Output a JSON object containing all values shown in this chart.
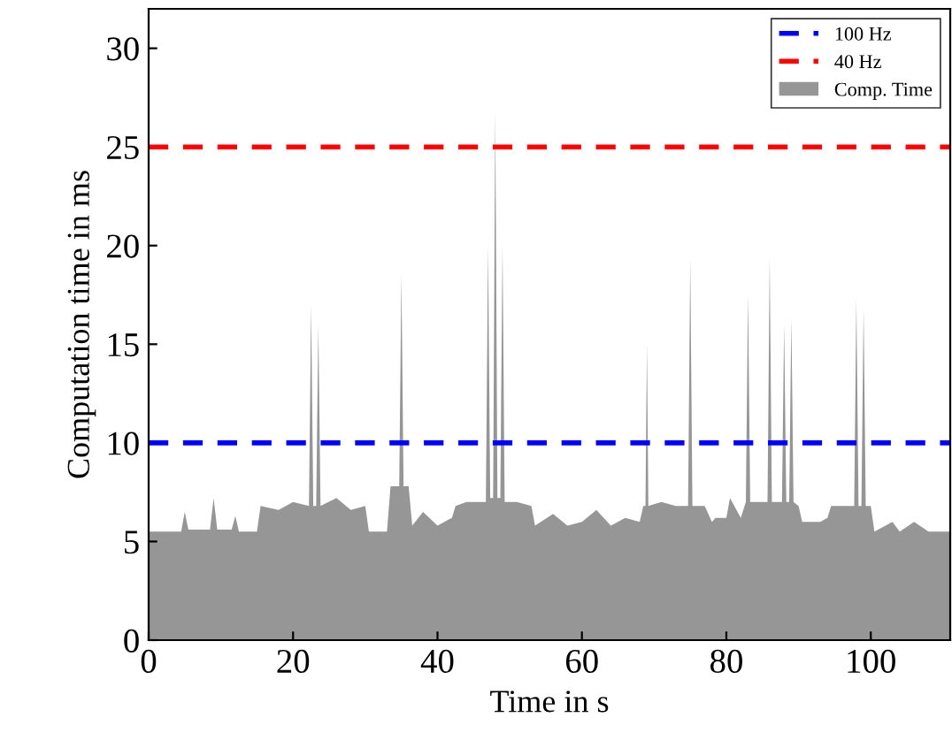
{
  "chart_data": {
    "type": "area",
    "xlabel": "Time in s",
    "ylabel": "Computation time in ms",
    "xlim": [
      0,
      111
    ],
    "ylim": [
      0,
      32
    ],
    "xticks": [
      0,
      20,
      40,
      60,
      80,
      100
    ],
    "yticks": [
      0,
      5,
      10,
      15,
      20,
      25,
      30
    ],
    "grid": false,
    "legend": "top right",
    "series": [
      {
        "name": "Comp. Time",
        "color": "#969696",
        "x": [
          0,
          4.5,
          5,
          5.5,
          8.5,
          9,
          9.5,
          11.5,
          12,
          12.5,
          15,
          15.5,
          18,
          20,
          22.2,
          22.5,
          22.8,
          23.2,
          23.5,
          23.8,
          26,
          28,
          30,
          30.5,
          33,
          33.5,
          34.7,
          35,
          35.3,
          36,
          36.5,
          38,
          40,
          42,
          42.5,
          44,
          46.7,
          47,
          47.3,
          47.7,
          48,
          48.3,
          48.7,
          49,
          49.3,
          51,
          53,
          53.5,
          56,
          58,
          60,
          62,
          64,
          66,
          68,
          68.5,
          68.8,
          69,
          69.2,
          71,
          73,
          74.7,
          75,
          75.3,
          77,
          78,
          78.5,
          80,
          80.5,
          82,
          82.7,
          83,
          83.3,
          85.7,
          86,
          86.3,
          87.7,
          88,
          88.3,
          88.7,
          89,
          89.3,
          90,
          90.5,
          93,
          94,
          94.5,
          97,
          97.7,
          98,
          98.3,
          98.7,
          99,
          99.3,
          100,
          100.5,
          103,
          104,
          106,
          108,
          111
        ],
        "values": [
          5.5,
          5.5,
          6.5,
          5.6,
          5.6,
          7.2,
          5.6,
          5.6,
          6.3,
          5.5,
          5.5,
          6.8,
          6.6,
          7.0,
          6.8,
          17,
          6.8,
          6.8,
          16,
          6.8,
          7.2,
          6.6,
          6.8,
          5.5,
          5.5,
          7.8,
          7.8,
          18.5,
          7.8,
          7.8,
          5.8,
          6.5,
          5.8,
          6.2,
          6.8,
          7.0,
          7.0,
          20,
          7.2,
          7.2,
          26.8,
          7.2,
          7.2,
          20,
          7.0,
          7.0,
          6.8,
          5.8,
          6.4,
          5.8,
          6.0,
          6.6,
          5.8,
          6.2,
          6.0,
          6.8,
          6.8,
          15,
          6.8,
          7.0,
          6.8,
          6.8,
          19.3,
          6.8,
          6.8,
          6.0,
          6.2,
          6.2,
          7.2,
          6.2,
          7.0,
          17.5,
          7.0,
          7.0,
          19.4,
          7.0,
          7.0,
          16,
          7.0,
          7.0,
          16.3,
          7.0,
          6.8,
          6.0,
          6.0,
          6.2,
          6.8,
          6.8,
          6.8,
          17.3,
          6.8,
          6.8,
          16.8,
          6.8,
          6.8,
          5.5,
          6.0,
          5.5,
          6.0,
          5.5,
          5.5
        ]
      }
    ],
    "ref_lines": [
      {
        "axis": "y",
        "value": 10,
        "label": "100 Hz",
        "color": "#0000ff",
        "line_style": "dashed"
      },
      {
        "axis": "y",
        "value": 25,
        "label": "40 Hz",
        "color": "#ff0000",
        "line_style": "dashed"
      }
    ]
  }
}
